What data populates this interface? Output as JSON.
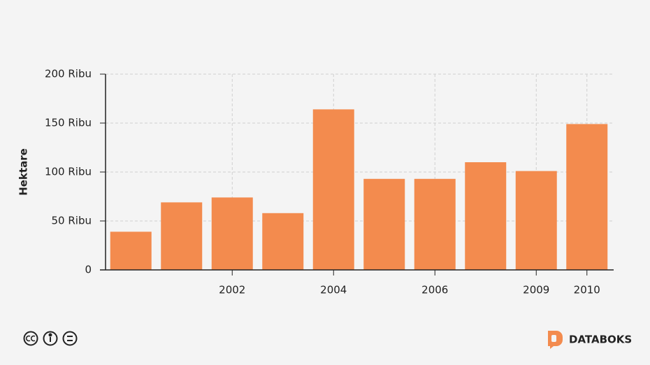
{
  "chart_data": {
    "type": "bar",
    "y_label": "Hektare",
    "categories": [
      null,
      null,
      "2002",
      null,
      "2004",
      null,
      "2006",
      null,
      "2009",
      "2010"
    ],
    "values": [
      39000,
      69000,
      74000,
      58000,
      164000,
      93000,
      93000,
      110000,
      101000,
      149000
    ],
    "color": "#f38b4e",
    "ylim": [
      0,
      200000
    ],
    "yticks": [
      0,
      {
        "value": 50000,
        "label": "50 Ribu"
      },
      {
        "value": 100000,
        "label": "100 Ribu"
      },
      {
        "value": 150000,
        "label": "150 Ribu"
      },
      {
        "value": 200000,
        "label": "200 Ribu"
      }
    ],
    "grid": true
  },
  "footer": {
    "brand": "DATABOKS"
  }
}
